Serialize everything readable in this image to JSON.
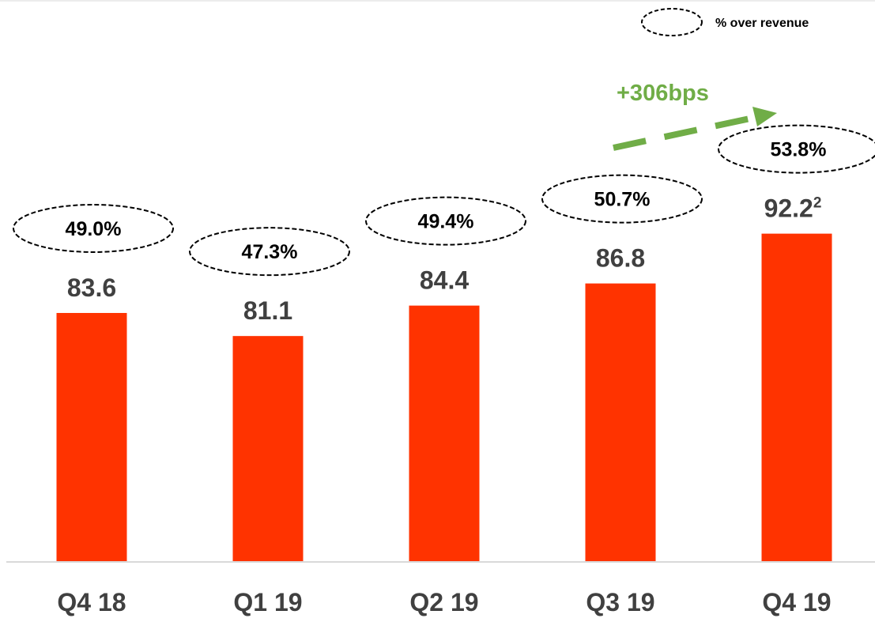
{
  "legend": {
    "label": "% over revenue"
  },
  "trend": {
    "label": "+306bps",
    "color": "#70AD47"
  },
  "colors": {
    "bar": "#FF3300",
    "text": "#404040",
    "axis": "#D9D9D9",
    "ellipse": "#000000"
  },
  "chart_data": {
    "type": "bar",
    "categories": [
      "Q4 18",
      "Q1 19",
      "Q2 19",
      "Q3 19",
      "Q4 19"
    ],
    "values": [
      83.6,
      81.1,
      84.4,
      86.8,
      92.2
    ],
    "value_labels": [
      "83.6",
      "81.1",
      "84.4",
      "86.8",
      "92.2"
    ],
    "value_superscripts": [
      "",
      "",
      "",
      "",
      "2"
    ],
    "percent_over_revenue": [
      "49.0%",
      "47.3%",
      "49.4%",
      "50.7%",
      "53.8%"
    ],
    "ylim": [
      60,
      95
    ],
    "grid": false,
    "legend_position": "top-right"
  }
}
